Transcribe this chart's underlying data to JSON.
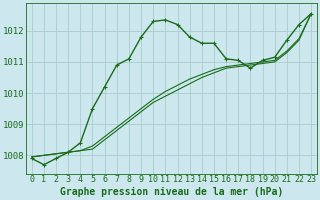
{
  "title": "Graphe pression niveau de la mer (hPa)",
  "background_color": "#cce8ee",
  "grid_color": "#aacccc",
  "line_color": "#1a6b1a",
  "x_labels": [
    "0",
    "1",
    "2",
    "3",
    "4",
    "5",
    "6",
    "7",
    "8",
    "9",
    "10",
    "11",
    "12",
    "13",
    "14",
    "15",
    "16",
    "17",
    "18",
    "19",
    "20",
    "21",
    "22",
    "23"
  ],
  "ylim": [
    1007.4,
    1012.9
  ],
  "yticks": [
    1008,
    1009,
    1010,
    1011,
    1012
  ],
  "line1": [
    1007.9,
    1007.7,
    1007.9,
    1008.1,
    1008.4,
    1009.5,
    1010.2,
    1010.9,
    1011.1,
    1011.8,
    1012.3,
    1012.35,
    1012.2,
    1011.8,
    1011.6,
    1011.6,
    1011.1,
    1011.05,
    1010.8,
    1011.05,
    1011.15,
    1011.7,
    1012.2,
    1012.55
  ],
  "line2": [
    1007.95,
    1008.0,
    1008.05,
    1008.1,
    1008.15,
    1008.2,
    1008.5,
    1008.8,
    1009.1,
    1009.4,
    1009.7,
    1009.9,
    1010.1,
    1010.3,
    1010.5,
    1010.65,
    1010.8,
    1010.85,
    1010.9,
    1010.95,
    1011.0,
    1011.3,
    1011.7,
    1012.55
  ],
  "line3": [
    1007.95,
    1008.0,
    1008.05,
    1008.1,
    1008.15,
    1008.3,
    1008.6,
    1008.9,
    1009.2,
    1009.5,
    1009.8,
    1010.05,
    1010.25,
    1010.45,
    1010.6,
    1010.75,
    1010.85,
    1010.9,
    1010.95,
    1011.0,
    1011.05,
    1011.35,
    1011.75,
    1012.55
  ],
  "xlabel_fontsize": 6,
  "ylabel_fontsize": 6.5,
  "title_fontsize": 7,
  "marker_size": 3.5,
  "linewidth1": 1.0,
  "linewidth2": 0.8
}
